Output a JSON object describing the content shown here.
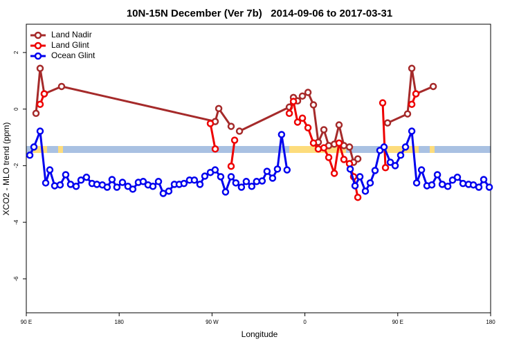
{
  "chart_data": {
    "type": "line",
    "title": "10N-15N December (Ver 7b)   2014-09-06 to 2017-03-31",
    "x_label": "Longitude",
    "y_label": "XCO2 - MLO trend (ppm)",
    "xlim": [
      90,
      540
    ],
    "xticks": [
      {
        "value": 90,
        "label": "90 E"
      },
      {
        "value": 180,
        "label": "180"
      },
      {
        "value": 270,
        "label": "90 W"
      },
      {
        "value": 360,
        "label": "0"
      },
      {
        "value": 450,
        "label": "90 E"
      },
      {
        "value": 540,
        "label": "180"
      }
    ],
    "ylim": [
      -7.2,
      3.0
    ],
    "yticks": [
      -6,
      -4,
      -2,
      0,
      2
    ],
    "legend": "top-left",
    "series": [
      {
        "name": "Land Nadir",
        "color": "#a52a2a",
        "x": [
          99.4,
          103.4,
          107.4,
          124.2,
          273.1,
          276.5,
          288.5,
          292,
          296.6,
          344.9,
          348.9,
          352.9,
          357.6,
          363,
          368.3,
          373,
          378.4,
          383.1,
          388.5,
          393.1,
          397.8,
          403.2,
          407.2,
          411.3,
          425,
          440.1,
          459.5,
          463.6,
          467.6,
          484.4
        ],
        "values": [
          -0.15,
          1.44,
          0.54,
          0.8,
          -0.44,
          0.02,
          -0.61,
          null,
          -0.78,
          0.07,
          0.41,
          0.29,
          0.46,
          0.59,
          0.15,
          -1.17,
          -0.73,
          -1.29,
          -1.24,
          -0.56,
          -1.29,
          -1.34,
          -1.88,
          -1.76,
          null,
          -0.49,
          -0.17,
          1.44,
          0.54,
          0.8
        ]
      },
      {
        "name": "Land Glint",
        "color": "#ee0000",
        "x": [
          103.4,
          107.4,
          200,
          268.4,
          273.1,
          280,
          288.5,
          291.9,
          320,
          344.9,
          348.9,
          352.9,
          357.6,
          363,
          368.3,
          373,
          378.4,
          383.1,
          388.5,
          393.1,
          397.8,
          403.2,
          407.2,
          411.3,
          425,
          435.4,
          438.1,
          450,
          463.6,
          467.6
        ],
        "values": [
          0.17,
          0.54,
          null,
          -0.51,
          -1.41,
          null,
          -2.02,
          -1.1,
          null,
          -0.15,
          0.27,
          -0.46,
          -0.32,
          -0.66,
          -1.2,
          -1.41,
          -1.37,
          -1.71,
          -2.27,
          -1.2,
          -1.78,
          -1.93,
          -2.39,
          -3.12,
          null,
          0.22,
          -2.07,
          null,
          0.17,
          0.54
        ]
      },
      {
        "name": "Ocean Glint",
        "color": "#0000ee",
        "x": [
          93.4,
          97.4,
          103.4,
          108.8,
          112.8,
          117.5,
          122.8,
          128.2,
          132.9,
          138.3,
          143,
          148.3,
          153.7,
          158.4,
          163.7,
          168.4,
          173.1,
          177.8,
          183.2,
          188.5,
          193.2,
          198.6,
          203.3,
          208,
          212.7,
          218.1,
          222.7,
          228.1,
          233.5,
          238.2,
          242.8,
          248.2,
          252.9,
          258.3,
          263,
          268.4,
          273,
          278.4,
          283.1,
          288.5,
          293.1,
          298.5,
          303.2,
          308.5,
          313.2,
          318.6,
          323.3,
          328.7,
          333.4,
          337.4,
          342.7,
          373,
          403.9,
          408.6,
          413.3,
          418.6,
          423.3,
          428,
          432.7,
          436.7,
          442.8,
          447.5,
          452.8,
          457.5,
          463.6,
          468.3,
          473,
          478.3,
          483,
          488.4,
          493.1,
          498.5,
          503.1,
          507.8,
          513.2,
          518.6,
          523.3,
          528.6,
          533.3,
          538.7
        ],
        "values": [
          -1.63,
          -1.34,
          -0.78,
          -2.61,
          -2.15,
          -2.71,
          -2.68,
          -2.32,
          -2.66,
          -2.73,
          -2.51,
          -2.41,
          -2.63,
          -2.66,
          -2.68,
          -2.76,
          -2.49,
          -2.76,
          -2.59,
          -2.73,
          -2.83,
          -2.59,
          -2.56,
          -2.68,
          -2.73,
          -2.56,
          -2.98,
          -2.9,
          -2.66,
          -2.66,
          -2.63,
          -2.51,
          -2.51,
          -2.66,
          -2.37,
          -2.24,
          -2.15,
          -2.39,
          -2.93,
          -2.39,
          -2.61,
          -2.76,
          -2.56,
          -2.73,
          -2.56,
          -2.54,
          -2.2,
          -2.44,
          -2.12,
          -0.9,
          -2.15,
          null,
          -2.12,
          -2.71,
          -2.39,
          -2.9,
          -2.61,
          -2.17,
          -1.46,
          -1.34,
          -1.88,
          -2.0,
          -1.63,
          -1.34,
          -0.78,
          -2.61,
          -2.15,
          -2.71,
          -2.68,
          -2.32,
          -2.66,
          -2.73,
          -2.51,
          -2.41,
          -2.63,
          -2.66,
          -2.68,
          -2.76,
          -2.49,
          -2.76
        ]
      }
    ]
  }
}
